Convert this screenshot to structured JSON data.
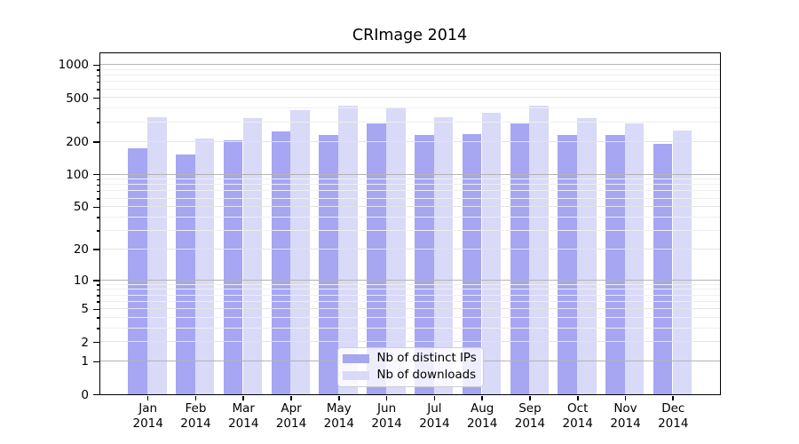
{
  "chart_data": {
    "type": "bar",
    "title": "CRImage 2014",
    "categories": [
      "Jan",
      "Feb",
      "Mar",
      "Apr",
      "May",
      "Jun",
      "Jul",
      "Aug",
      "Sep",
      "Oct",
      "Nov",
      "Dec"
    ],
    "category_year": "2014",
    "series": [
      {
        "name": "Nb of distinct IPs",
        "color": "#a6a6f2",
        "values": [
          171,
          152,
          204,
          245,
          230,
          293,
          228,
          233,
          293,
          226,
          226,
          189
        ]
      },
      {
        "name": "Nb of downloads",
        "color": "#d9d9f8",
        "values": [
          330,
          212,
          323,
          382,
          420,
          398,
          330,
          362,
          420,
          323,
          293,
          252
        ]
      }
    ],
    "yscale": "log1p",
    "yticks": [
      0,
      1,
      2,
      5,
      10,
      20,
      50,
      100,
      200,
      500,
      1000
    ],
    "ylim": [
      0,
      1280
    ],
    "grid": true,
    "legend_position": "lower center"
  },
  "colors": {
    "major_grid": "#b3b3b3",
    "labeled_grid": "#e4e4e4",
    "minor_grid": "#efefef",
    "axis": "#000000",
    "legend_border": "#cfcfcf",
    "background": "#ffffff"
  }
}
